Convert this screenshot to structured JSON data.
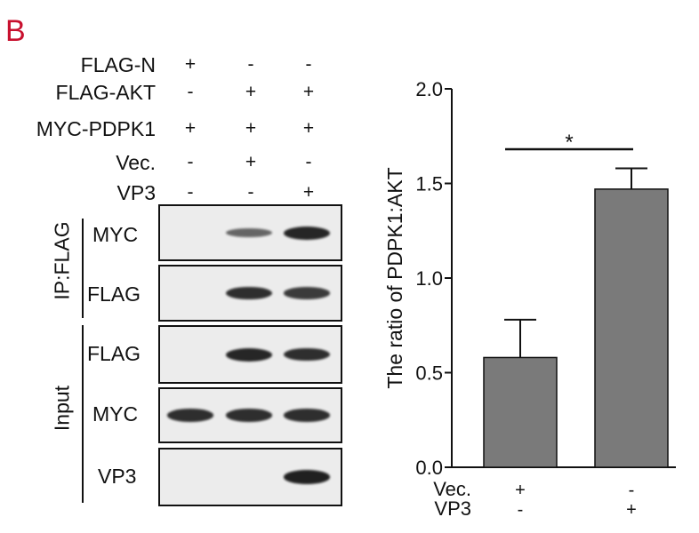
{
  "panel_letter": "B",
  "conditions": [
    {
      "label": "FLAG-N",
      "signs": [
        "+",
        "-",
        "-"
      ]
    },
    {
      "label": "FLAG-AKT",
      "signs": [
        "-",
        "+",
        "+"
      ]
    },
    {
      "label": "MYC-PDPK1",
      "signs": [
        "+",
        "+",
        "+"
      ]
    },
    {
      "label": "Vec.",
      "signs": [
        "-",
        "+",
        "-"
      ]
    },
    {
      "label": "VP3",
      "signs": [
        "-",
        "-",
        "+"
      ]
    }
  ],
  "groups": {
    "ip": "IP:FLAG",
    "input": "Input"
  },
  "blots": [
    {
      "label": "MYC",
      "bands": [
        0,
        0.45,
        0.9
      ]
    },
    {
      "label": "FLAG",
      "bands": [
        0,
        0.85,
        0.75
      ]
    },
    {
      "label": "FLAG",
      "bands": [
        0,
        0.9,
        0.85
      ]
    },
    {
      "label": "MYC",
      "bands": [
        0.85,
        0.85,
        0.85
      ]
    },
    {
      "label": "VP3",
      "bands": [
        0,
        0,
        0.95
      ]
    }
  ],
  "chart_data": {
    "type": "bar",
    "ylabel": "The ratio of PDPK1:AKT",
    "ylim": [
      0,
      2.0
    ],
    "yticks": [
      "0.0",
      "0.5",
      "1.0",
      "1.5",
      "2.0"
    ],
    "categories": [
      "Vec. + / VP3 -",
      "Vec. - / VP3 +"
    ],
    "values": [
      0.58,
      1.47
    ],
    "errors": [
      0.2,
      0.11
    ],
    "bar_color": "#7a7a7a",
    "x_rows": [
      {
        "label": "Vec.",
        "signs": [
          "+",
          "-"
        ]
      },
      {
        "label": "VP3",
        "signs": [
          "-",
          "+"
        ]
      }
    ],
    "significance": "*"
  }
}
